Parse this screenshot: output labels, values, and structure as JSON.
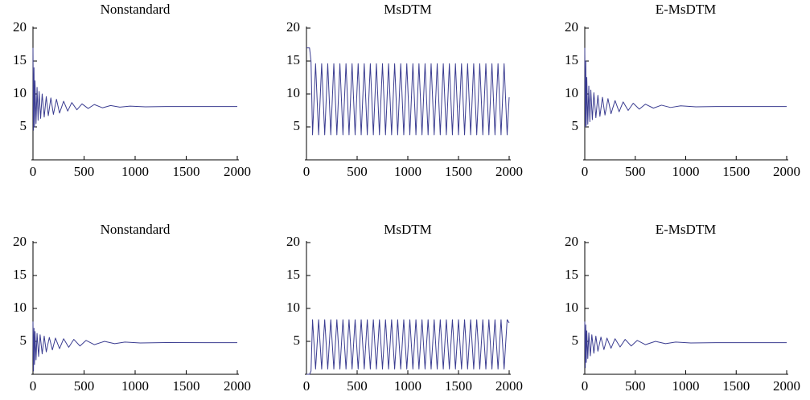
{
  "chart_data": [
    {
      "type": "line",
      "title": "Nonstandard",
      "color": "#3b3d91",
      "x": [
        0,
        5,
        10,
        15,
        20,
        30,
        40,
        50,
        60,
        75,
        90,
        110,
        130,
        150,
        175,
        200,
        230,
        260,
        300,
        340,
        380,
        430,
        480,
        540,
        600,
        680,
        760,
        850,
        950,
        1100,
        1300,
        2000
      ],
      "values": [
        17,
        4.5,
        14,
        5,
        12,
        5.5,
        11,
        6,
        10.4,
        6.3,
        10,
        6.5,
        9.6,
        6.7,
        9.4,
        6.9,
        9.2,
        7.1,
        8.9,
        7.4,
        8.7,
        7.6,
        8.5,
        7.8,
        8.4,
        7.9,
        8.25,
        8.0,
        8.15,
        8.05,
        8.1,
        8.1
      ],
      "xlim": [
        0,
        2000
      ],
      "ylim": [
        0,
        20
      ],
      "xticks": [
        0,
        500,
        1000,
        1500,
        2000
      ],
      "yticks": [
        5,
        10,
        15,
        20
      ]
    },
    {
      "type": "line",
      "title": "MsDTM",
      "color": "#3b3d91",
      "x": [
        0,
        30,
        45,
        60,
        90,
        120,
        150,
        180,
        210,
        240,
        270,
        300,
        330,
        360,
        390,
        420,
        450,
        480,
        510,
        540,
        570,
        600,
        630,
        660,
        690,
        720,
        750,
        780,
        810,
        840,
        870,
        900,
        930,
        960,
        990,
        1020,
        1050,
        1080,
        1110,
        1140,
        1170,
        1200,
        1230,
        1260,
        1290,
        1320,
        1350,
        1380,
        1410,
        1440,
        1470,
        1500,
        1530,
        1560,
        1590,
        1620,
        1650,
        1680,
        1710,
        1740,
        1770,
        1800,
        1830,
        1860,
        1890,
        1920,
        1950,
        1980,
        2000
      ],
      "values": [
        17,
        17,
        15,
        3.8,
        14.6,
        3.8,
        14.6,
        3.8,
        14.6,
        3.8,
        14.6,
        3.8,
        14.6,
        3.8,
        14.6,
        3.8,
        14.6,
        3.8,
        14.6,
        3.8,
        14.6,
        3.8,
        14.6,
        3.8,
        14.6,
        3.8,
        14.6,
        3.8,
        14.6,
        3.8,
        14.6,
        3.8,
        14.6,
        3.8,
        14.6,
        3.8,
        14.6,
        3.8,
        14.6,
        3.8,
        14.6,
        3.8,
        14.6,
        3.8,
        14.6,
        3.8,
        14.6,
        3.8,
        14.6,
        3.8,
        14.6,
        3.8,
        14.6,
        3.8,
        14.6,
        3.8,
        14.6,
        3.8,
        14.6,
        3.8,
        14.6,
        3.8,
        14.6,
        3.8,
        14.6,
        3.8,
        14.6,
        3.8,
        9.5
      ],
      "xlim": [
        0,
        2000
      ],
      "ylim": [
        0,
        20
      ],
      "xticks": [
        0,
        500,
        1000,
        1500,
        2000
      ],
      "yticks": [
        5,
        10,
        15,
        20
      ]
    },
    {
      "type": "line",
      "title": "E-MsDTM",
      "color": "#3b3d91",
      "x": [
        0,
        5,
        10,
        15,
        20,
        30,
        40,
        50,
        60,
        75,
        90,
        110,
        130,
        150,
        175,
        200,
        230,
        260,
        300,
        340,
        380,
        430,
        480,
        540,
        600,
        680,
        760,
        850,
        950,
        1100,
        1300,
        2000
      ],
      "values": [
        17,
        5,
        15,
        5.2,
        12.5,
        5.4,
        11.2,
        5.8,
        10.6,
        6.1,
        10.2,
        6.4,
        9.8,
        6.6,
        9.5,
        6.8,
        9.3,
        7.0,
        9.0,
        7.3,
        8.8,
        7.5,
        8.6,
        7.7,
        8.45,
        7.85,
        8.3,
        7.95,
        8.2,
        8.05,
        8.1,
        8.1
      ],
      "xlim": [
        0,
        2000
      ],
      "ylim": [
        0,
        20
      ],
      "xticks": [
        0,
        500,
        1000,
        1500,
        2000
      ],
      "yticks": [
        5,
        10,
        15,
        20
      ]
    },
    {
      "type": "line",
      "title": "Nonstandard",
      "color": "#3b3d91",
      "x": [
        0,
        5,
        10,
        15,
        20,
        30,
        40,
        55,
        70,
        90,
        110,
        130,
        160,
        190,
        220,
        260,
        300,
        350,
        400,
        460,
        520,
        600,
        700,
        800,
        900,
        1050,
        1300,
        2000
      ],
      "values": [
        8,
        0.5,
        7,
        1.5,
        6.5,
        2.2,
        6.2,
        2.7,
        6,
        3.1,
        5.8,
        3.4,
        5.6,
        3.7,
        5.5,
        3.9,
        5.4,
        4.1,
        5.3,
        4.3,
        5.15,
        4.5,
        5.0,
        4.65,
        4.9,
        4.75,
        4.82,
        4.8
      ],
      "xlim": [
        0,
        2000
      ],
      "ylim": [
        0,
        20
      ],
      "xticks": [
        0,
        500,
        1000,
        1500,
        2000
      ],
      "yticks": [
        5,
        10,
        15,
        20
      ]
    },
    {
      "type": "line",
      "title": "MsDTM",
      "color": "#3b3d91",
      "x": [
        0,
        30,
        45,
        60,
        90,
        120,
        150,
        180,
        210,
        240,
        270,
        300,
        330,
        360,
        390,
        420,
        450,
        480,
        510,
        540,
        570,
        600,
        630,
        660,
        690,
        720,
        750,
        780,
        810,
        840,
        870,
        900,
        930,
        960,
        990,
        1020,
        1050,
        1080,
        1110,
        1140,
        1170,
        1200,
        1230,
        1260,
        1290,
        1320,
        1350,
        1380,
        1410,
        1440,
        1470,
        1500,
        1530,
        1560,
        1590,
        1620,
        1650,
        1680,
        1710,
        1740,
        1770,
        1800,
        1830,
        1860,
        1890,
        1920,
        1950,
        1980,
        2000
      ],
      "values": [
        0,
        0,
        0.5,
        8.3,
        0.8,
        8.3,
        0.8,
        8.3,
        0.8,
        8.3,
        0.8,
        8.3,
        0.8,
        8.3,
        0.8,
        8.3,
        0.8,
        8.3,
        0.8,
        8.3,
        0.8,
        8.3,
        0.8,
        8.3,
        0.8,
        8.3,
        0.8,
        8.3,
        0.8,
        8.3,
        0.8,
        8.3,
        0.8,
        8.3,
        0.8,
        8.3,
        0.8,
        8.3,
        0.8,
        8.3,
        0.8,
        8.3,
        0.8,
        8.3,
        0.8,
        8.3,
        0.8,
        8.3,
        0.8,
        8.3,
        0.8,
        8.3,
        0.8,
        8.3,
        0.8,
        8.3,
        0.8,
        8.3,
        0.8,
        8.3,
        0.8,
        8.3,
        0.8,
        8.3,
        0.8,
        8.3,
        0.8,
        8.3,
        7.8
      ],
      "xlim": [
        0,
        2000
      ],
      "ylim": [
        0,
        20
      ],
      "xticks": [
        0,
        500,
        1000,
        1500,
        2000
      ],
      "yticks": [
        5,
        10,
        15,
        20
      ]
    },
    {
      "type": "line",
      "title": "E-MsDTM",
      "color": "#3b3d91",
      "x": [
        0,
        5,
        10,
        15,
        20,
        30,
        40,
        55,
        70,
        90,
        110,
        130,
        160,
        190,
        220,
        260,
        300,
        350,
        400,
        460,
        520,
        600,
        700,
        800,
        900,
        1050,
        1300,
        2000
      ],
      "values": [
        8,
        1,
        7.5,
        1.8,
        6.6,
        2.4,
        6.3,
        2.8,
        6.0,
        3.2,
        5.8,
        3.5,
        5.65,
        3.75,
        5.5,
        3.95,
        5.4,
        4.15,
        5.3,
        4.3,
        5.15,
        4.5,
        5.0,
        4.65,
        4.9,
        4.75,
        4.8,
        4.8
      ],
      "xlim": [
        0,
        2000
      ],
      "ylim": [
        0,
        20
      ],
      "xticks": [
        0,
        500,
        1000,
        1500,
        2000
      ],
      "yticks": [
        5,
        10,
        15,
        20
      ]
    }
  ]
}
